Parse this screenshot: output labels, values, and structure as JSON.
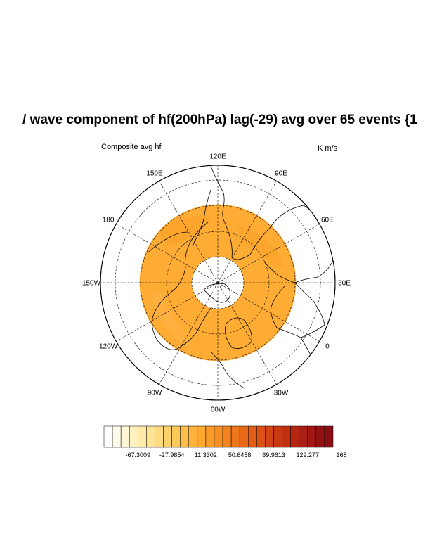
{
  "title": "/ wave component of hf(200hPa) lag(-29) avg over 65 events {1",
  "left_subtitle": "Composite avg hf",
  "right_subtitle": "K m/s",
  "longitude_labels": [
    "120E",
    "90E",
    "60E",
    "30E",
    "0",
    "30W",
    "60W",
    "90W",
    "120W",
    "150W",
    "180",
    "150E"
  ],
  "colorbar": {
    "labels": [
      "-67.3009",
      "-27.9854",
      "11.3302",
      "50.6458",
      "89.9613",
      "129.277",
      "168"
    ],
    "colors": [
      "#ffffff",
      "#fffbea",
      "#fff6d5",
      "#fff0c0",
      "#ffeaa9",
      "#ffe394",
      "#ffdc80",
      "#ffd36c",
      "#ffc95a",
      "#ffbe49",
      "#ffb33b",
      "#fea830",
      "#fb9c29",
      "#f79023",
      "#f3841f",
      "#ee771b",
      "#e86a18",
      "#e25e16",
      "#db5214",
      "#d34613",
      "#ca3a12",
      "#c13012",
      "#b62612",
      "#ab1e13",
      "#a01714",
      "#951214",
      "#8b0e14"
    ]
  },
  "field": {
    "fill_color": "#ffac35",
    "inner_latitude": 70,
    "outer_latitude": 30
  }
}
